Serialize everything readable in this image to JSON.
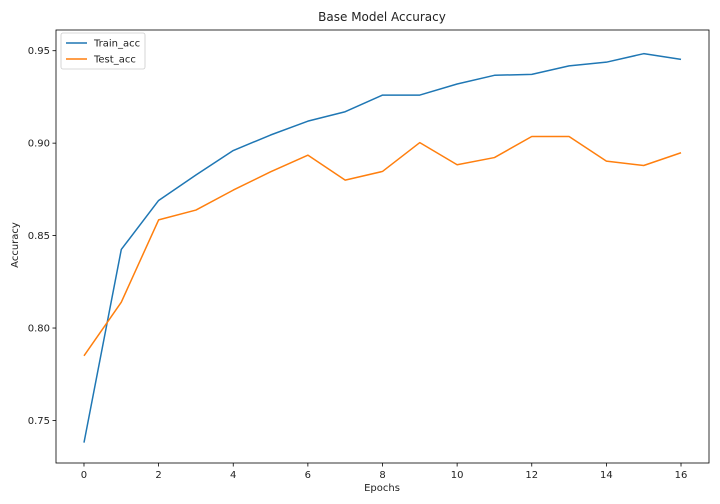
{
  "chart_data": {
    "type": "line",
    "title": "Base Model Accuracy",
    "xlabel": "Epochs",
    "ylabel": "Accuracy",
    "x": [
      0,
      1,
      2,
      3,
      4,
      5,
      6,
      7,
      8,
      9,
      10,
      11,
      12,
      13,
      14,
      15,
      16
    ],
    "xlim": [
      -0.75,
      16.75
    ],
    "ylim": [
      0.727,
      0.9612
    ],
    "xticks": [
      0,
      2,
      4,
      6,
      8,
      10,
      12,
      14,
      16
    ],
    "xtick_labels": [
      "0",
      "2",
      "4",
      "6",
      "8",
      "10",
      "12",
      "14",
      "16"
    ],
    "yticks": [
      0.75,
      0.8,
      0.85,
      0.9,
      0.95
    ],
    "ytick_labels": [
      "0.75",
      "0.80",
      "0.85",
      "0.90",
      "0.95"
    ],
    "grid": false,
    "legend_position": "top-left",
    "series": [
      {
        "name": "Train_acc",
        "color": "#1f77b4",
        "values": [
          0.738,
          0.8425,
          0.869,
          0.8828,
          0.896,
          0.9044,
          0.9119,
          0.917,
          0.926,
          0.926,
          0.932,
          0.9367,
          0.9372,
          0.9418,
          0.9438,
          0.9484,
          0.9453
        ]
      },
      {
        "name": "Test_acc",
        "color": "#ff7f0e",
        "values": [
          0.785,
          0.814,
          0.8585,
          0.8638,
          0.8746,
          0.8845,
          0.8935,
          0.88,
          0.8847,
          0.9003,
          0.8883,
          0.8922,
          0.9036,
          0.9036,
          0.8903,
          0.8879,
          0.8948
        ]
      }
    ]
  }
}
